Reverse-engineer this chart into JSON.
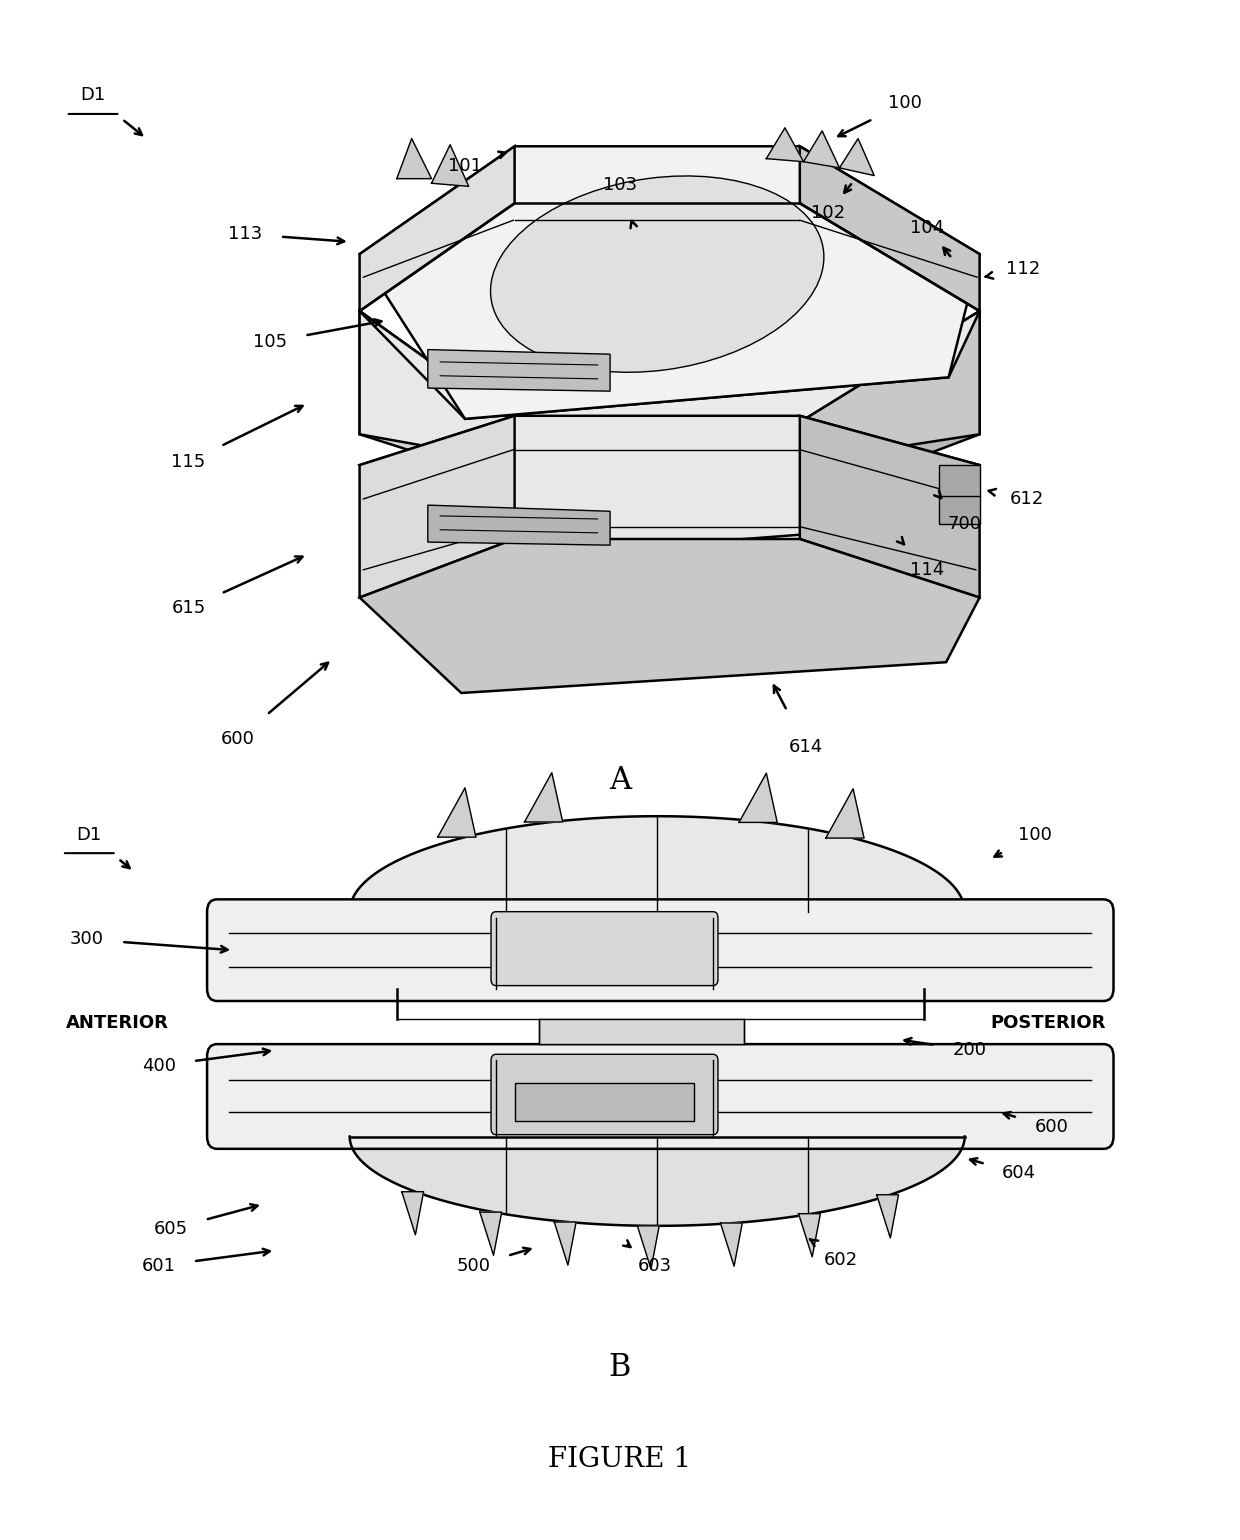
{
  "figure_title": "FIGURE 1",
  "panel_A_label": "A",
  "panel_B_label": "B",
  "bg_color": "#ffffff",
  "line_color": "#000000",
  "fig_width": 12.4,
  "fig_height": 15.4
}
